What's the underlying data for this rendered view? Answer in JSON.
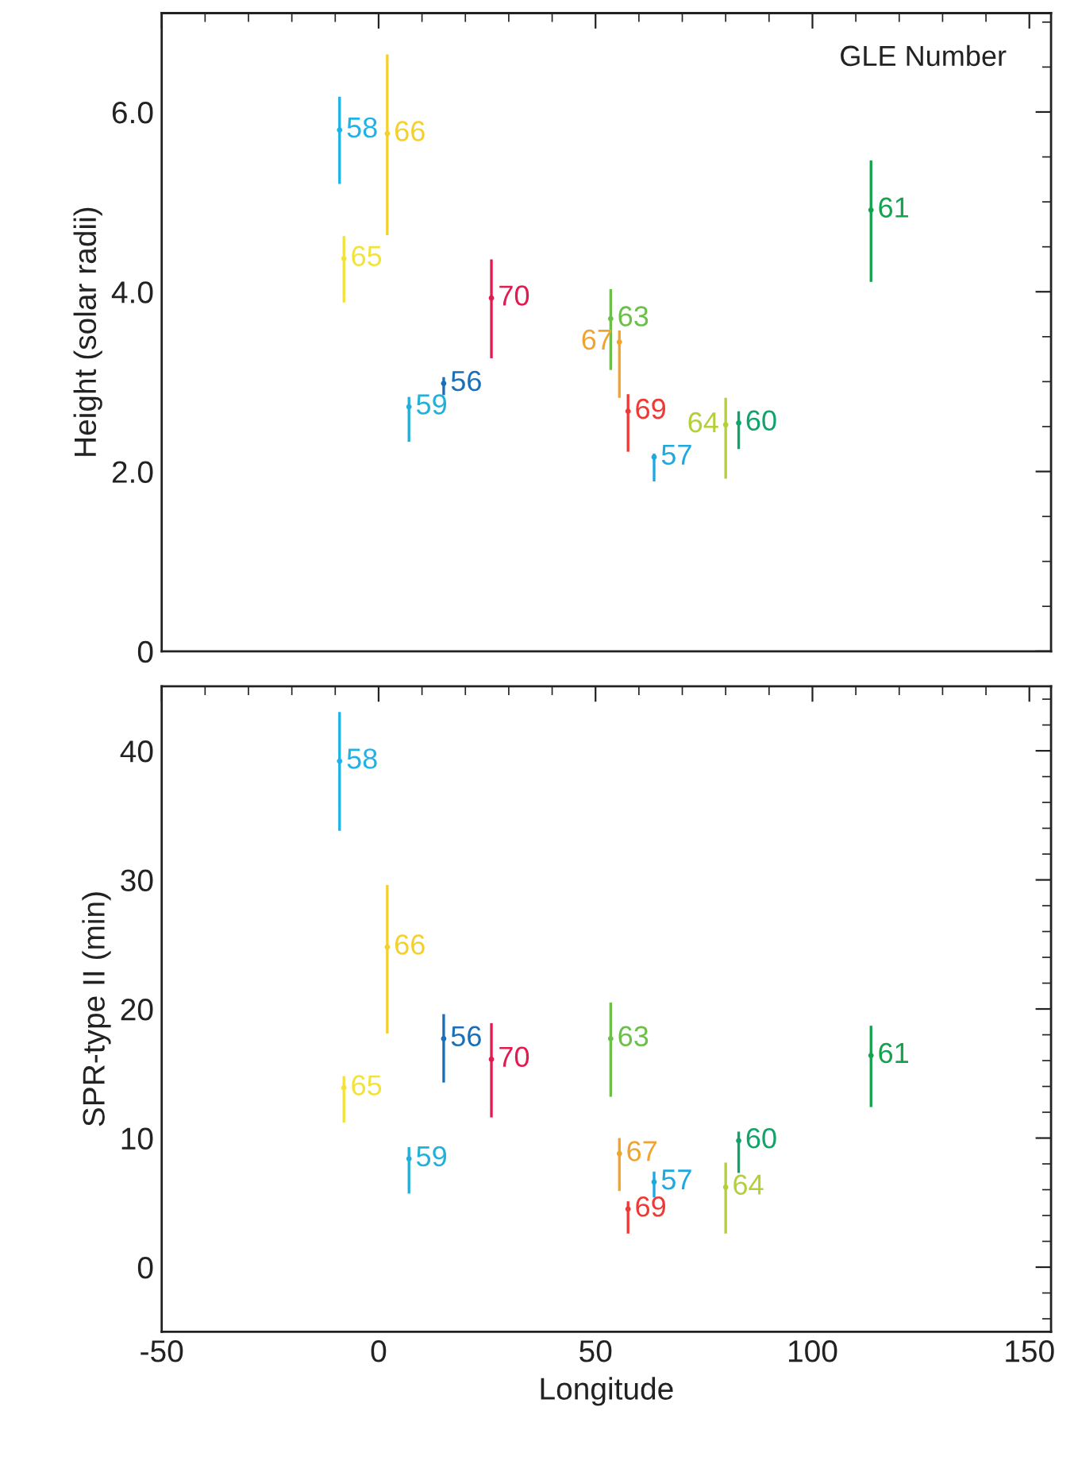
{
  "chart_data": [
    {
      "type": "scatter",
      "ylabel": "Height (solar radii)",
      "xlim": [
        -50,
        155
      ],
      "ylim": [
        0,
        7.1
      ],
      "xticks": [
        -50,
        0,
        50,
        100,
        150
      ],
      "yticks": [
        0,
        {
          "value": 2,
          "label": "2.0"
        },
        {
          "value": 4,
          "label": "4.0"
        },
        {
          "value": 6,
          "label": "6.0"
        }
      ],
      "tick_labels": "y",
      "marker": "none",
      "series": [
        {
          "x": [
            15,
            63.5,
            -9,
            7,
            83,
            113.5,
            53.5,
            80,
            -8,
            2,
            55.5,
            57.5,
            26
          ],
          "values": [
            2.98,
            2.16,
            5.8,
            2.72,
            2.54,
            4.91,
            3.7,
            2.52,
            4.37,
            5.76,
            3.44,
            2.67,
            3.93
          ],
          "colors": [
            "#1a6fb8",
            "#1ea8e0",
            "#1cb4e8",
            "#22b0d8",
            "#12a36a",
            "#13a34e",
            "#6cc04a",
            "#b3cf3a",
            "#f2e33a",
            "#f5cf2a",
            "#f0a430",
            "#ec3a36",
            "#e21a4f"
          ],
          "errors": [
            [
              2.85,
              3.05
            ],
            [
              1.89,
              2.2
            ],
            [
              5.2,
              6.17
            ],
            [
              2.33,
              2.83
            ],
            [
              2.25,
              2.67
            ],
            [
              4.11,
              5.46
            ],
            [
              3.13,
              4.03
            ],
            [
              1.92,
              2.82
            ],
            [
              3.88,
              4.62
            ],
            [
              4.63,
              6.64
            ],
            [
              2.82,
              3.57
            ],
            [
              2.22,
              2.86
            ],
            [
              3.26,
              4.36
            ]
          ]
        }
      ],
      "annotations": [
        "GLE Number",
        {
          "text": "56",
          "x": 15,
          "y": 2.98
        },
        {
          "text": "57",
          "x": 63.5,
          "y": 2.16
        },
        {
          "text": "58",
          "x": -9,
          "y": 5.8
        },
        {
          "text": "59",
          "x": 7,
          "y": 2.72
        },
        {
          "text": "60",
          "x": 83,
          "y": 2.54
        },
        {
          "text": "61",
          "x": 113.5,
          "y": 4.91
        },
        {
          "text": "63",
          "x": 53.5,
          "y": 3.7
        },
        {
          "text": "64",
          "x": 80,
          "y": 2.52
        },
        {
          "text": "65",
          "x": -8,
          "y": 4.37
        },
        {
          "text": "66",
          "x": 2,
          "y": 5.76
        },
        {
          "text": "67",
          "x": 55.5,
          "y": 3.44
        },
        {
          "text": "69",
          "x": 57.5,
          "y": 2.67
        },
        {
          "text": "70",
          "x": 26,
          "y": 3.93
        }
      ]
    },
    {
      "type": "scatter",
      "xlabel": "Longitude",
      "ylabel": "SPR-type II (min)",
      "xlim": [
        -50,
        155
      ],
      "ylim": [
        -5,
        45
      ],
      "xticks": [
        -50,
        0,
        50,
        100,
        150
      ],
      "yticks": [
        0,
        10,
        20,
        30,
        40
      ],
      "marker": "none",
      "series": [
        {
          "x": [
            15,
            63.5,
            -9,
            7,
            83,
            113.5,
            53.5,
            80,
            -8,
            2,
            55.5,
            57.5,
            26
          ],
          "values": [
            17.7,
            6.6,
            39.2,
            8.4,
            9.8,
            16.4,
            17.7,
            6.2,
            13.9,
            24.8,
            8.8,
            4.5,
            16.1
          ],
          "colors": [
            "#1a6fb8",
            "#1ea8e0",
            "#1cb4e8",
            "#22b0d8",
            "#12a36a",
            "#13a34e",
            "#6cc04a",
            "#b3cf3a",
            "#f2e33a",
            "#f5cf2a",
            "#f0a430",
            "#ec3a36",
            "#e21a4f"
          ],
          "errors": [
            [
              14.3,
              19.6
            ],
            [
              5.4,
              7.4
            ],
            [
              33.8,
              43.0
            ],
            [
              5.7,
              9.3
            ],
            [
              7.3,
              10.5
            ],
            [
              12.4,
              18.7
            ],
            [
              13.2,
              20.5
            ],
            [
              2.6,
              8.1
            ],
            [
              11.2,
              14.8
            ],
            [
              18.1,
              29.6
            ],
            [
              5.9,
              10.0
            ],
            [
              2.6,
              5.1
            ],
            [
              11.6,
              18.9
            ]
          ]
        }
      ],
      "annotations": [
        {
          "text": "56",
          "x": 15,
          "y": 17.7
        },
        {
          "text": "57",
          "x": 63.5,
          "y": 6.6
        },
        {
          "text": "58",
          "x": -9,
          "y": 39.2
        },
        {
          "text": "59",
          "x": 7,
          "y": 8.4
        },
        {
          "text": "60",
          "x": 83,
          "y": 9.8
        },
        {
          "text": "61",
          "x": 113.5,
          "y": 16.4
        },
        {
          "text": "63",
          "x": 53.5,
          "y": 17.7
        },
        {
          "text": "64",
          "x": 80,
          "y": 6.2
        },
        {
          "text": "65",
          "x": -8,
          "y": 13.9
        },
        {
          "text": "66",
          "x": 2,
          "y": 24.8
        },
        {
          "text": "67",
          "x": 55.5,
          "y": 8.8
        },
        {
          "text": "69",
          "x": 57.5,
          "y": 4.5
        },
        {
          "text": "70",
          "x": 26,
          "y": 16.1
        }
      ]
    }
  ]
}
